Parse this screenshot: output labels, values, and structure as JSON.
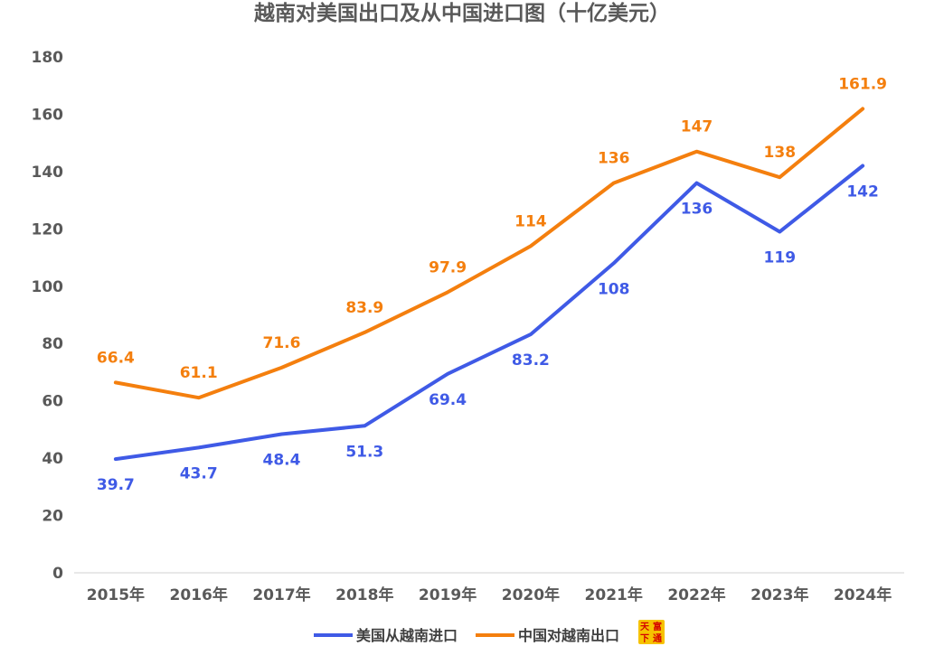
{
  "chart_data": {
    "type": "line",
    "title": "越南对美国出口及从中国进口图（十亿美元）",
    "categories": [
      "2015年",
      "2016年",
      "2017年",
      "2018年",
      "2019年",
      "2020年",
      "2021年",
      "2022年",
      "2023年",
      "2024年"
    ],
    "y_ticks": [
      "0",
      "20",
      "40",
      "60",
      "80",
      "100",
      "120",
      "140",
      "160",
      "180"
    ],
    "ylim": [
      0,
      180
    ],
    "grid": false,
    "legend_position": "bottom",
    "series": [
      {
        "name": "美国从越南进口",
        "color": "#3f5ae6",
        "values": [
          39.7,
          43.7,
          48.4,
          51.3,
          69.4,
          83.2,
          108,
          136,
          119,
          142
        ],
        "labels": [
          "39.7",
          "43.7",
          "48.4",
          "51.3",
          "69.4",
          "83.2",
          "108",
          "136",
          "119",
          "142"
        ],
        "label_position": "below"
      },
      {
        "name": "中国对越南出口",
        "color": "#f47f0e",
        "values": [
          66.4,
          61.1,
          71.6,
          83.9,
          97.9,
          114,
          136,
          147,
          138,
          161.9
        ],
        "labels": [
          "66.4",
          "61.1",
          "71.6",
          "83.9",
          "97.9",
          "114",
          "136",
          "147",
          "138",
          "161.9"
        ],
        "label_position": "above"
      }
    ]
  },
  "watermark": {
    "chars": [
      "天",
      "富",
      "下",
      "通"
    ],
    "colors": {
      "background": "#f6c200",
      "text": "#d40000"
    }
  }
}
